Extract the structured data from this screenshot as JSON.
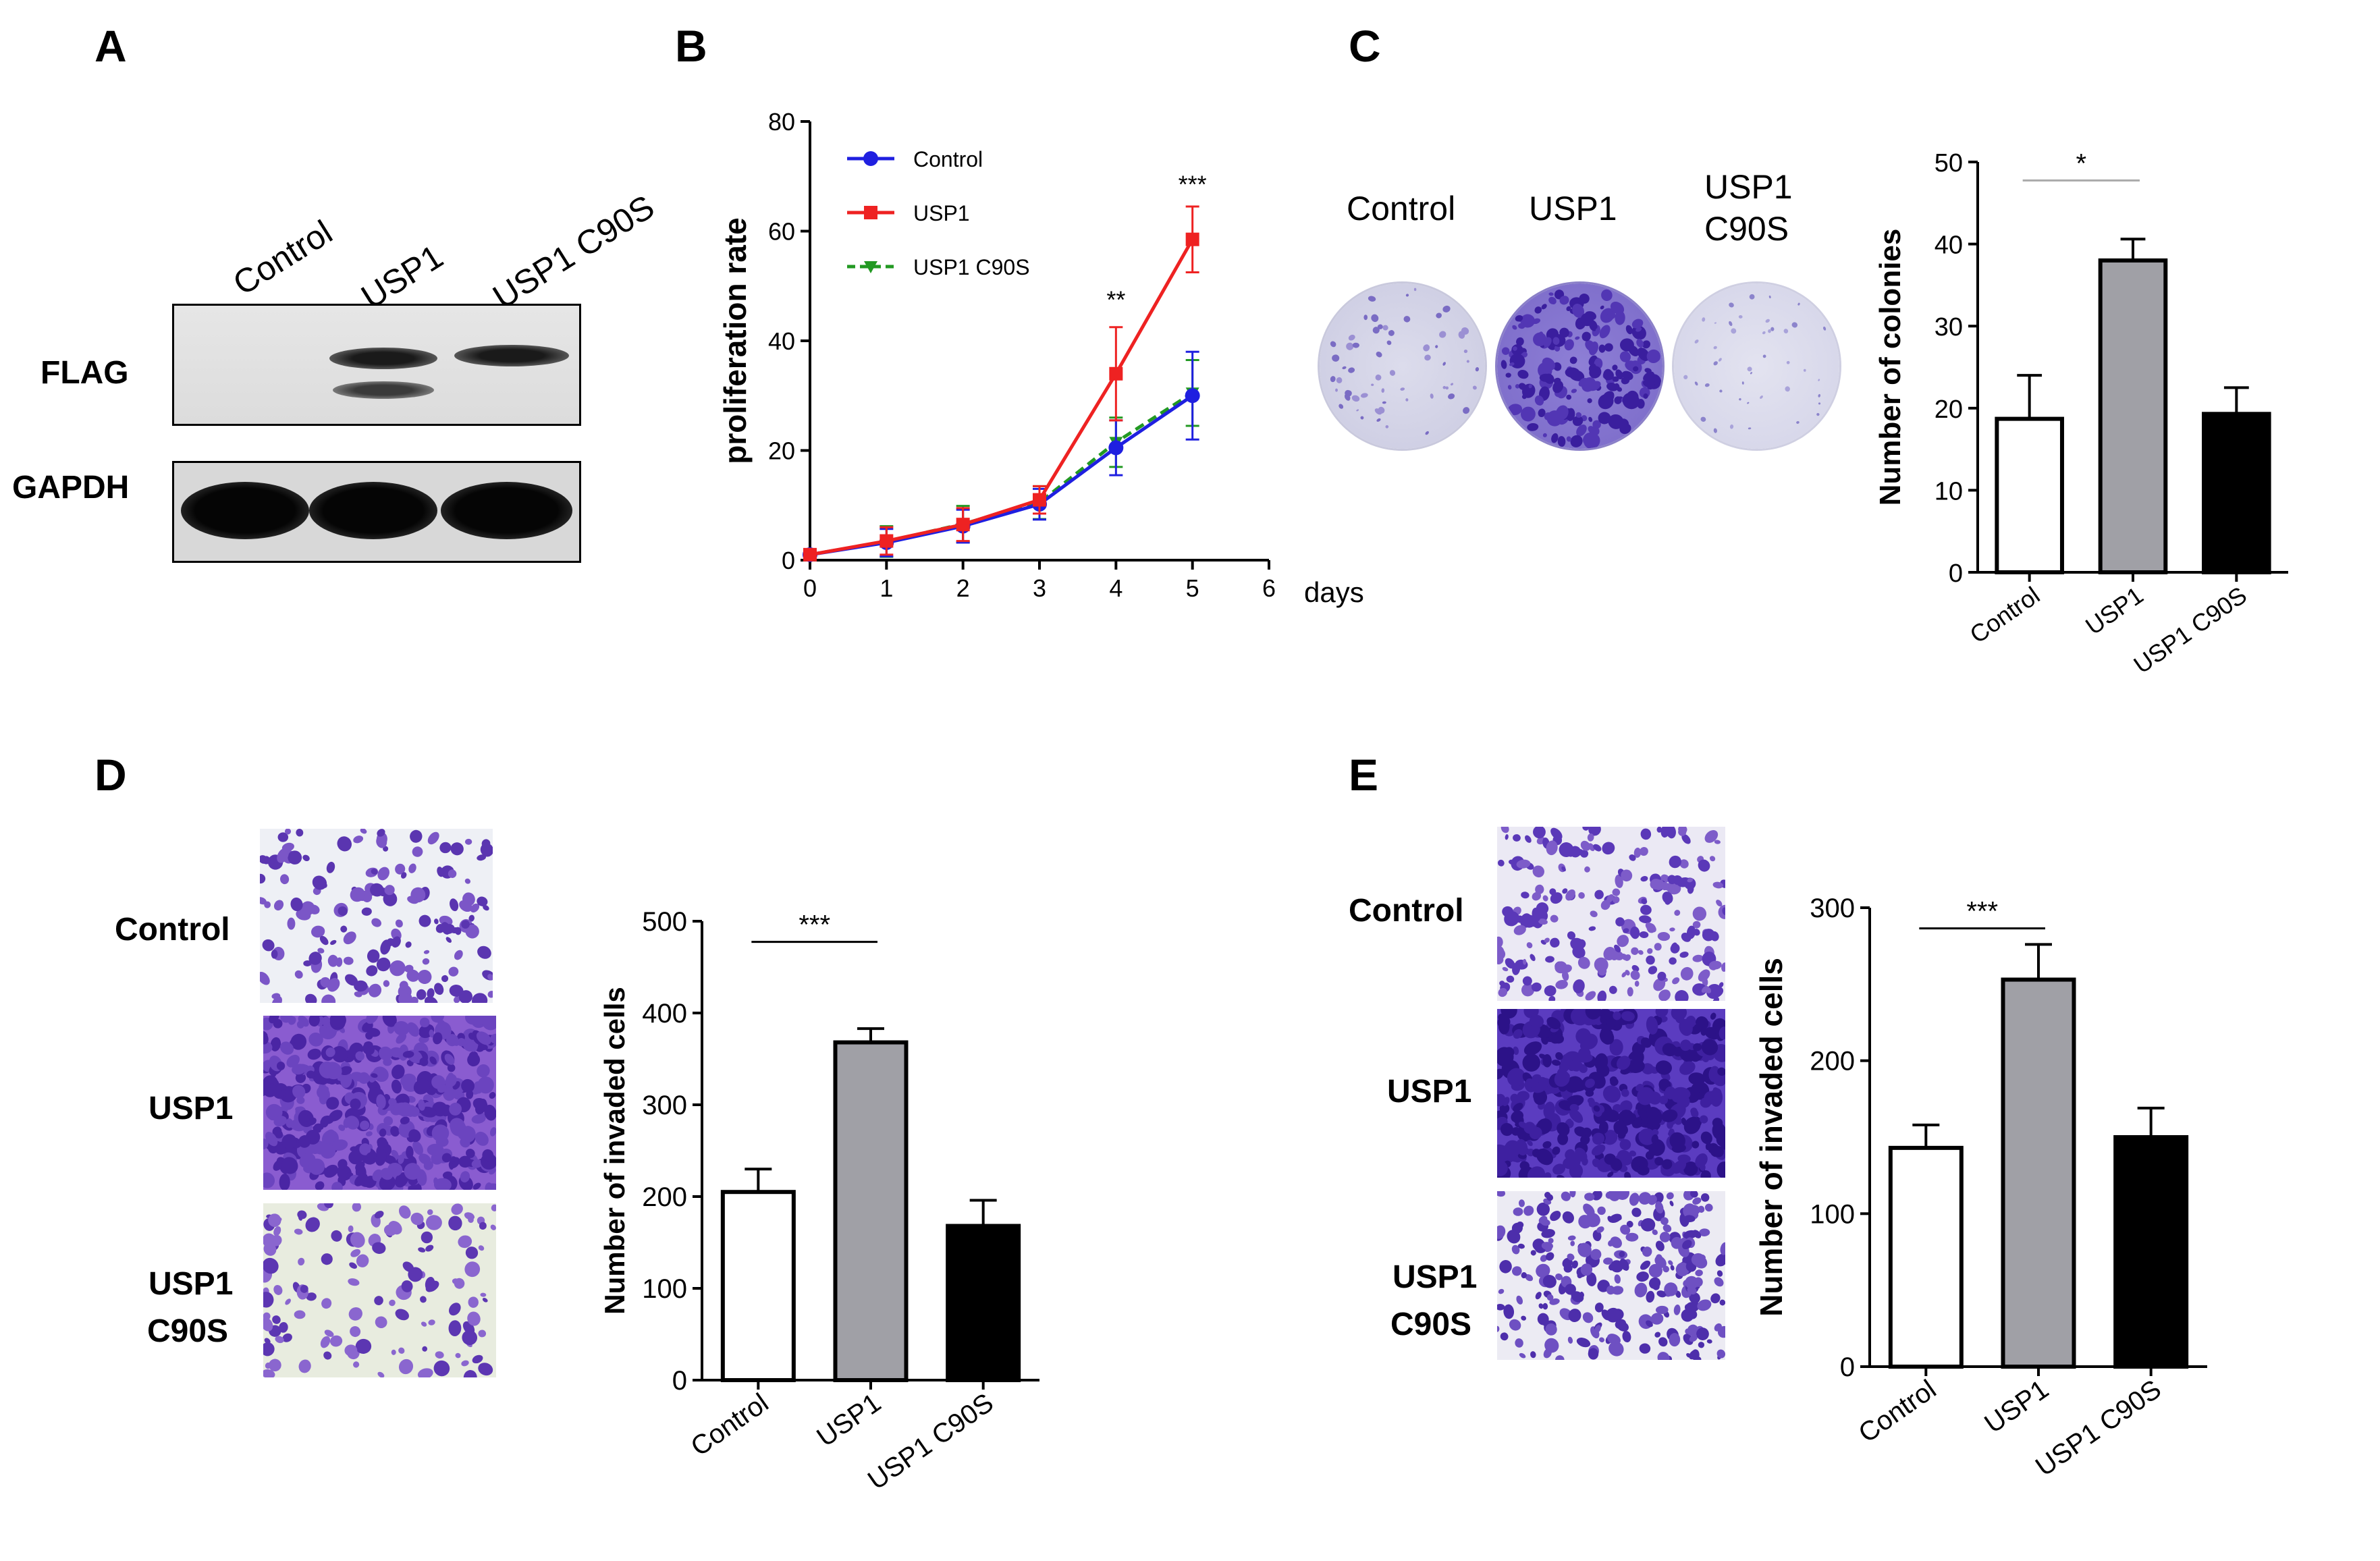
{
  "panels": {
    "A": {
      "letter": "A",
      "lanes": [
        "Control",
        "USP1",
        "USP1 C90S"
      ],
      "rows": [
        "FLAG",
        "GAPDH"
      ]
    },
    "B": {
      "letter": "B"
    },
    "C": {
      "letter": "C",
      "dish_labels": [
        "Control",
        "USP1",
        "USP1\nC90S"
      ],
      "dish_label_lines": [
        [
          "Control"
        ],
        [
          "USP1"
        ],
        [
          "USP1",
          "C90S"
        ]
      ]
    },
    "D": {
      "letter": "D",
      "row_labels": [
        [
          "Control"
        ],
        [
          "USP1"
        ],
        [
          "USP1",
          "C90S"
        ]
      ]
    },
    "E": {
      "letter": "E",
      "row_labels": [
        [
          "Control"
        ],
        [
          "USP1"
        ],
        [
          "USP1",
          "C90S"
        ]
      ]
    }
  },
  "colors": {
    "control_line": "#1f1fe0",
    "usp1_line": "#ee2222",
    "c90s_line": "#229922",
    "bar_control": "#ffffff",
    "bar_usp1": "#a0a0a6",
    "bar_c90s": "#000000",
    "stain": "#5b2fb5"
  },
  "chart_data": [
    {
      "id": "B",
      "type": "line",
      "xlabel": "days",
      "ylabel": "proliferation rate",
      "xlim": [
        0,
        6
      ],
      "ylim": [
        0,
        80
      ],
      "xticks": [
        0,
        1,
        2,
        3,
        4,
        5,
        6
      ],
      "yticks": [
        0,
        20,
        40,
        60,
        80
      ],
      "legend_position": "top-left",
      "series": [
        {
          "name": "Control",
          "x": [
            0,
            1,
            2,
            3,
            4,
            5
          ],
          "values": [
            1,
            3.2,
            6.2,
            10.2,
            20.5,
            30
          ],
          "errors": [
            0.5,
            2.5,
            3.0,
            2.8,
            5.0,
            8.0
          ],
          "color": "#1f1fe0",
          "marker": "circle"
        },
        {
          "name": "USP1",
          "x": [
            0,
            1,
            2,
            3,
            4,
            5
          ],
          "values": [
            1,
            3.5,
            6.5,
            11,
            34,
            58.5
          ],
          "errors": [
            0.5,
            2.5,
            3.0,
            2.5,
            8.5,
            6.0
          ],
          "color": "#ee2222",
          "marker": "square"
        },
        {
          "name": "USP1 C90S",
          "x": [
            0,
            1,
            2,
            3,
            4,
            5
          ],
          "values": [
            1,
            3.4,
            6.6,
            10.5,
            21.5,
            30.5
          ],
          "errors": [
            0.5,
            2.8,
            3.3,
            3.0,
            4.5,
            6.0
          ],
          "color": "#229922",
          "marker": "triangle"
        }
      ],
      "annotations": [
        {
          "x": 4,
          "text": "**",
          "y": 46
        },
        {
          "x": 5,
          "text": "***",
          "y": 67
        }
      ]
    },
    {
      "id": "C",
      "type": "bar",
      "ylabel": "Number of colonies",
      "categories": [
        "Control",
        "USP1",
        "USP1 C90S"
      ],
      "values": [
        18.7,
        38,
        19.3
      ],
      "errors": [
        5.3,
        2.6,
        3.2
      ],
      "ylim": [
        0,
        50
      ],
      "yticks": [
        0,
        10,
        20,
        30,
        40,
        50
      ],
      "significance": {
        "from": 0,
        "to": 1,
        "text": "*"
      }
    },
    {
      "id": "D",
      "type": "bar",
      "ylabel": "Number of invaded cells",
      "categories": [
        "Control",
        "USP1",
        "USP1 C90S"
      ],
      "values": [
        205,
        368,
        168
      ],
      "errors": [
        25,
        15,
        28
      ],
      "ylim": [
        0,
        500
      ],
      "yticks": [
        0,
        100,
        200,
        300,
        400,
        500
      ],
      "significance": {
        "from": 0,
        "to": 1,
        "text": "***"
      }
    },
    {
      "id": "E",
      "type": "bar",
      "ylabel": "Number of invaded cells",
      "categories": [
        "Control",
        "USP1",
        "USP1 C90S"
      ],
      "values": [
        143,
        253,
        150
      ],
      "errors": [
        15,
        23,
        19
      ],
      "ylim": [
        0,
        300
      ],
      "yticks": [
        0,
        100,
        200,
        300
      ],
      "significance": {
        "from": 0,
        "to": 1,
        "text": "***"
      }
    }
  ]
}
